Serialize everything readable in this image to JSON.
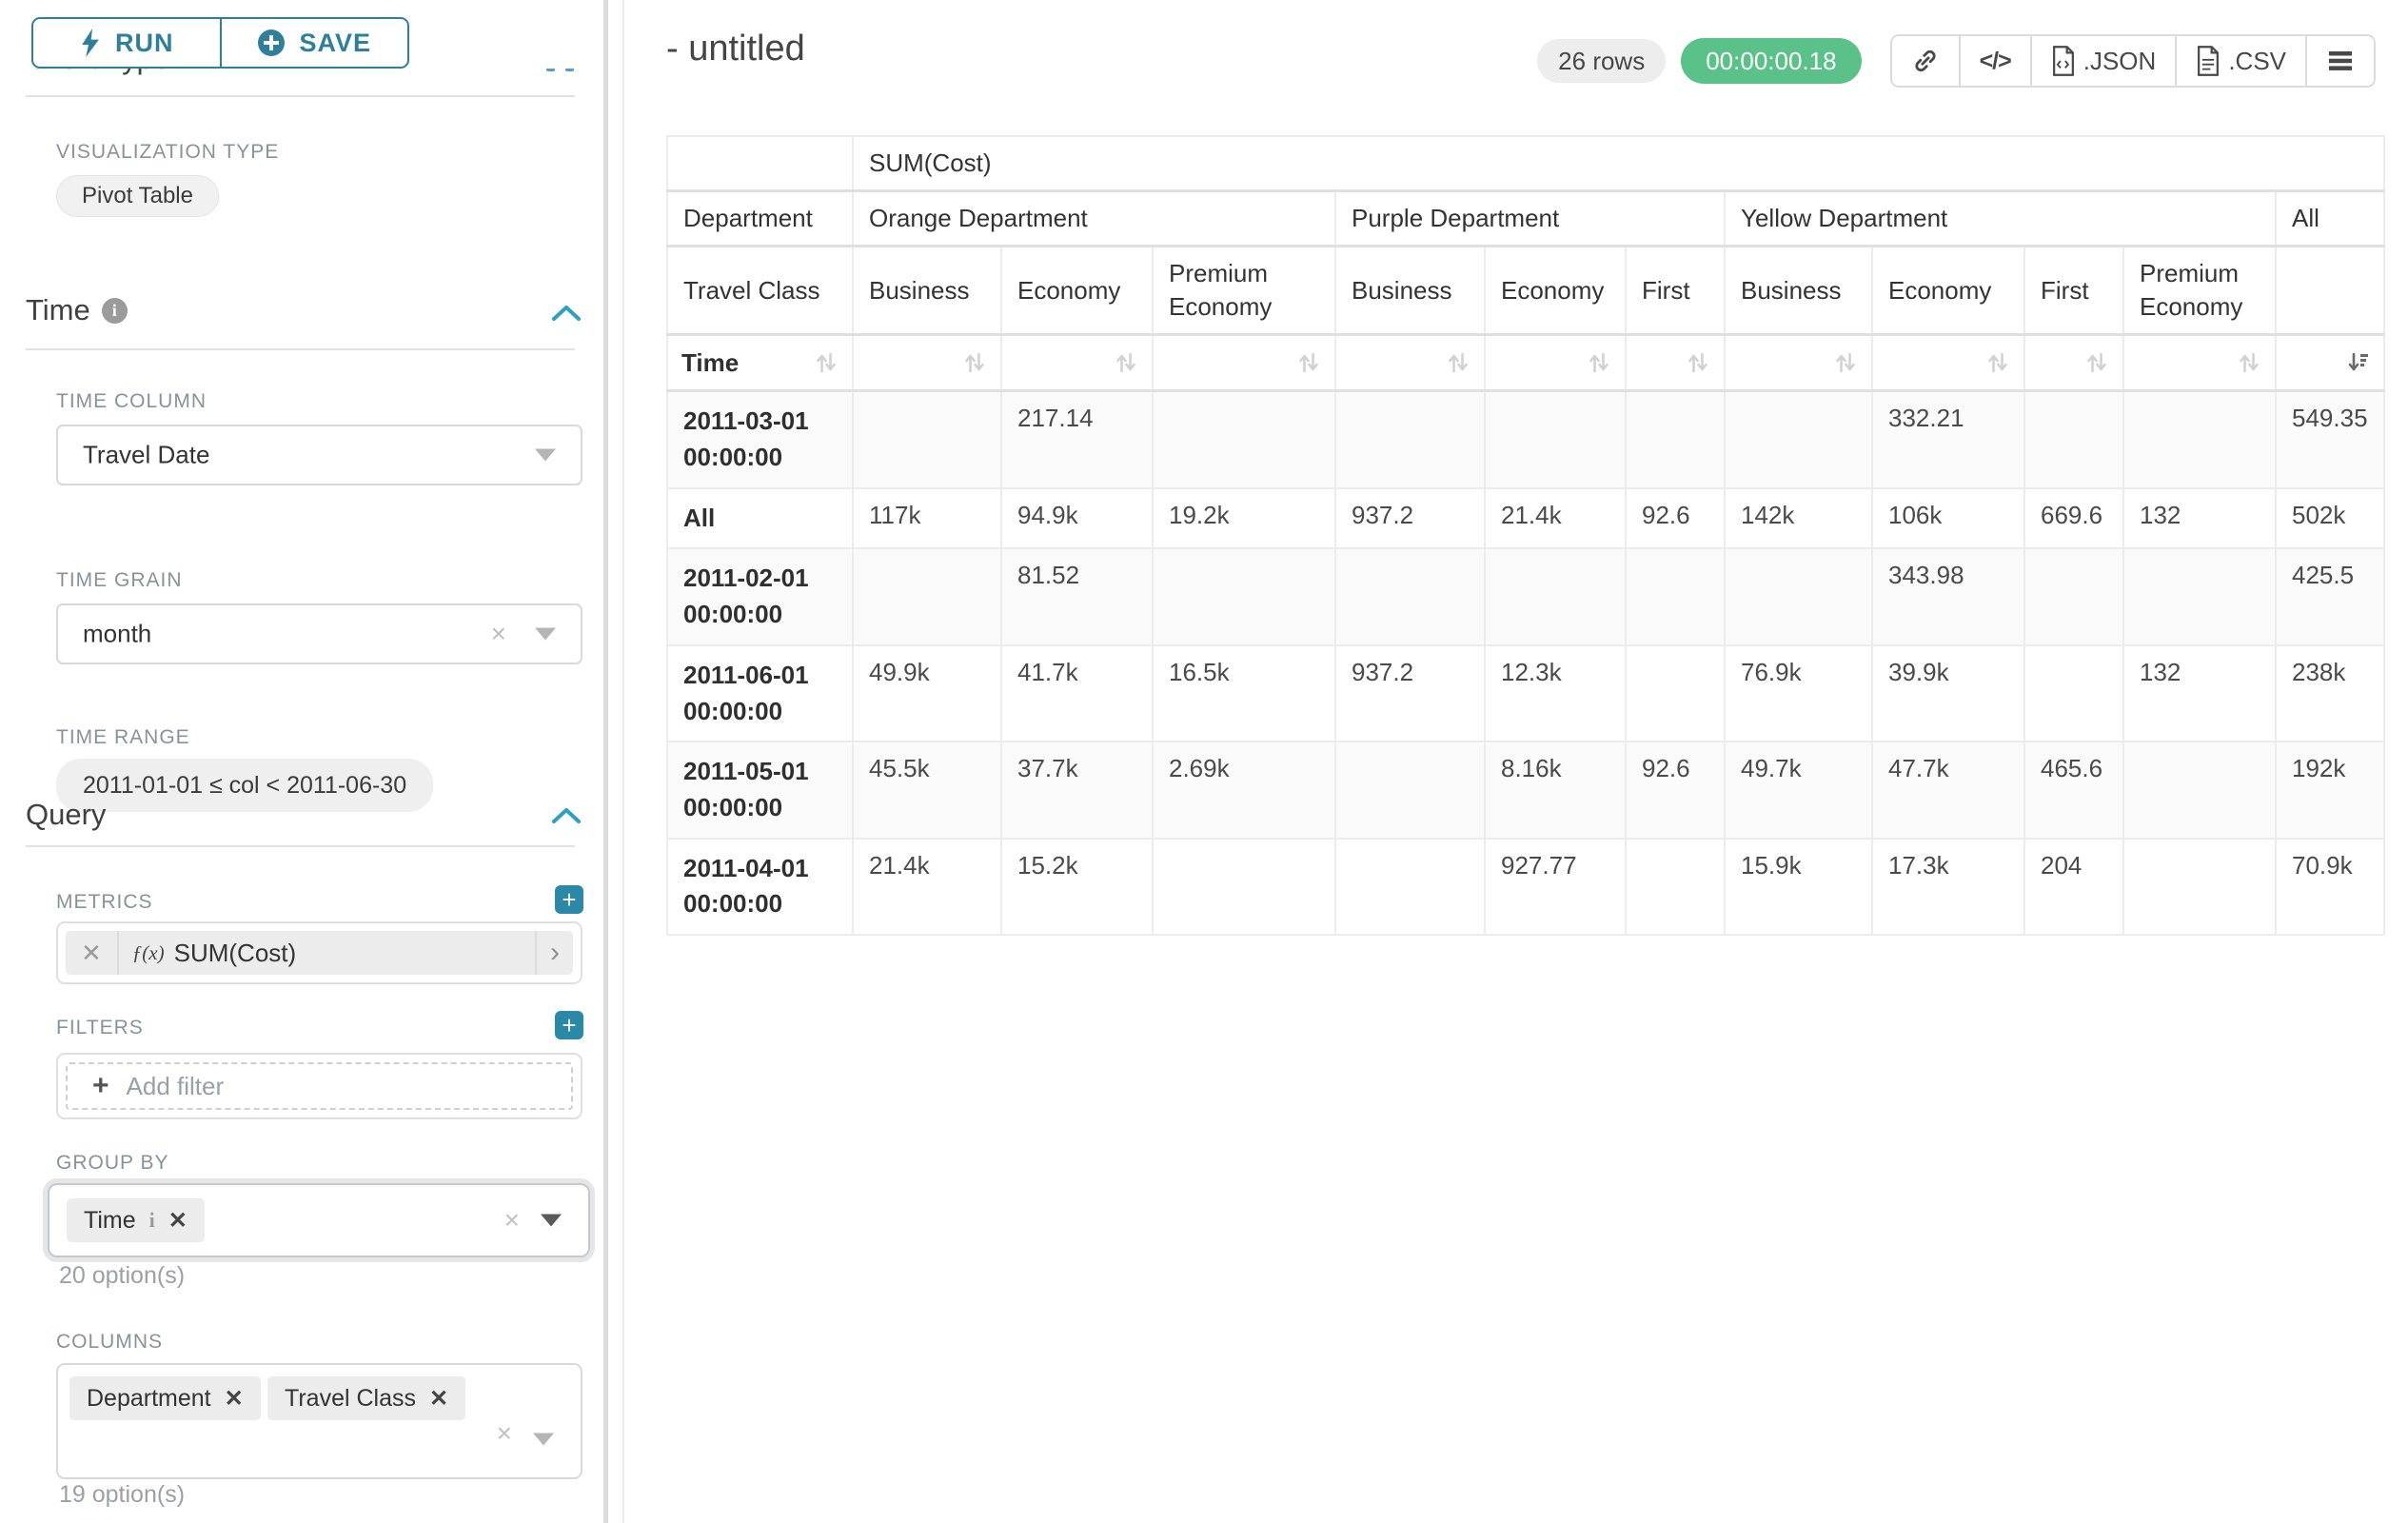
{
  "colors": {
    "accent_teal": "#2e7f9b",
    "accent_bright": "#2b89a8",
    "success_green": "#5ac189",
    "label_gray": "#879399"
  },
  "toolbar": {
    "run_label": "RUN",
    "save_label": "SAVE"
  },
  "panel": {
    "clipped_heading": "Chart Type",
    "viz_type_label": "VISUALIZATION TYPE",
    "viz_type_value": "Pivot Table",
    "time_section": {
      "title": "Time",
      "time_column_label": "TIME COLUMN",
      "time_column_value": "Travel Date",
      "time_grain_label": "TIME GRAIN",
      "time_grain_value": "month",
      "time_range_label": "TIME RANGE",
      "time_range_value": "2011-01-01 ≤ col < 2011-06-30"
    },
    "query_section": {
      "title": "Query",
      "metrics_label": "METRICS",
      "metric_fn": "ƒ(x)",
      "metric_value": "SUM(Cost)",
      "filters_label": "FILTERS",
      "add_filter_placeholder": "Add filter",
      "groupby_label": "GROUP BY",
      "groupby_tags": [
        "Time"
      ],
      "groupby_option_count": "20 option(s)",
      "columns_label": "COLUMNS",
      "columns_tags": [
        "Department",
        "Travel Class"
      ],
      "columns_option_count": "19 option(s)"
    }
  },
  "header": {
    "title": "- untitled",
    "rows_badge": "26 rows",
    "timer": "00:00:00.18",
    "json_label": ".JSON",
    "csv_label": ".CSV"
  },
  "chart_data": {
    "type": "table",
    "metric_header": "SUM(Cost)",
    "row_dim_label": "Department",
    "col_dim_label": "Travel Class",
    "row_axis_label": "Time",
    "column_groups": [
      {
        "label": "Orange Department",
        "cols": [
          "Business",
          "Economy",
          "Premium Economy"
        ]
      },
      {
        "label": "Purple Department",
        "cols": [
          "Business",
          "Economy",
          "First"
        ]
      },
      {
        "label": "Yellow Department",
        "cols": [
          "Business",
          "Economy",
          "First",
          "Premium Economy"
        ]
      },
      {
        "label": "All",
        "cols": [
          ""
        ]
      }
    ],
    "rows": [
      {
        "label": "2011-03-01 00:00:00",
        "values": [
          "",
          "217.14",
          "",
          "",
          "",
          "",
          "",
          "332.21",
          "",
          "",
          "549.35"
        ]
      },
      {
        "label": "All",
        "values": [
          "117k",
          "94.9k",
          "19.2k",
          "937.2",
          "21.4k",
          "92.6",
          "142k",
          "106k",
          "669.6",
          "132",
          "502k"
        ]
      },
      {
        "label": "2011-02-01 00:00:00",
        "values": [
          "",
          "81.52",
          "",
          "",
          "",
          "",
          "",
          "343.98",
          "",
          "",
          "425.5"
        ]
      },
      {
        "label": "2011-06-01 00:00:00",
        "values": [
          "49.9k",
          "41.7k",
          "16.5k",
          "937.2",
          "12.3k",
          "",
          "76.9k",
          "39.9k",
          "",
          "132",
          "238k"
        ]
      },
      {
        "label": "2011-05-01 00:00:00",
        "values": [
          "45.5k",
          "37.7k",
          "2.69k",
          "",
          "8.16k",
          "92.6",
          "49.7k",
          "47.7k",
          "465.6",
          "",
          "192k"
        ]
      },
      {
        "label": "2011-04-01 00:00:00",
        "values": [
          "21.4k",
          "15.2k",
          "",
          "",
          "927.77",
          "",
          "15.9k",
          "17.3k",
          "204",
          "",
          "70.9k"
        ]
      }
    ],
    "sorted_column": "All",
    "sort_direction": "desc"
  }
}
